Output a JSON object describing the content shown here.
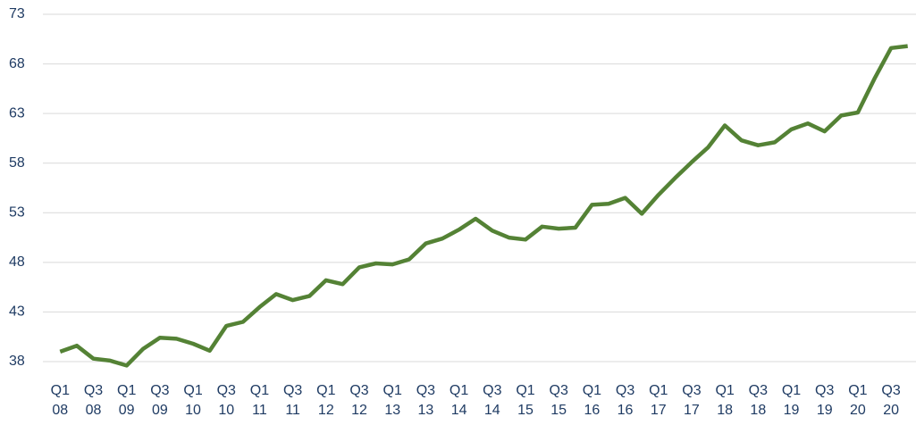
{
  "chart_data": {
    "type": "line",
    "categories": [
      "Q1 08",
      null,
      "Q3 08",
      null,
      "Q1 09",
      null,
      "Q3 09",
      null,
      "Q1 10",
      null,
      "Q3 10",
      null,
      "Q1 11",
      null,
      "Q3 11",
      null,
      "Q1 12",
      null,
      "Q3 12",
      null,
      "Q1 13",
      null,
      "Q3 13",
      null,
      "Q1 14",
      null,
      "Q3 14",
      null,
      "Q1 15",
      null,
      "Q3 15",
      null,
      "Q1 16",
      null,
      "Q3 16",
      null,
      "Q1 17",
      null,
      "Q3 17",
      null,
      "Q1 18",
      null,
      "Q3 18",
      null,
      "Q1 19",
      null,
      "Q3 19",
      null,
      "Q1 20",
      null,
      "Q3 20",
      null
    ],
    "series": [
      {
        "color": "#548235",
        "values": [
          39.0,
          39.6,
          38.3,
          38.1,
          37.6,
          39.3,
          40.4,
          40.3,
          39.8,
          39.1,
          41.6,
          42.0,
          43.5,
          44.8,
          44.2,
          44.6,
          46.2,
          45.8,
          47.5,
          47.9,
          47.8,
          48.3,
          49.9,
          50.4,
          51.3,
          52.4,
          51.2,
          50.5,
          50.3,
          51.6,
          51.4,
          51.5,
          53.8,
          53.9,
          54.5,
          52.9,
          54.8,
          56.5,
          58.1,
          59.6,
          61.8,
          60.3,
          59.8,
          60.1,
          61.4,
          62.0,
          61.2,
          62.8,
          63.1,
          66.5,
          69.6,
          69.8
        ]
      }
    ],
    "ylim": [
      38,
      73
    ],
    "yticks": [
      38,
      43,
      48,
      53,
      58,
      63,
      68,
      73
    ],
    "grid": true
  }
}
